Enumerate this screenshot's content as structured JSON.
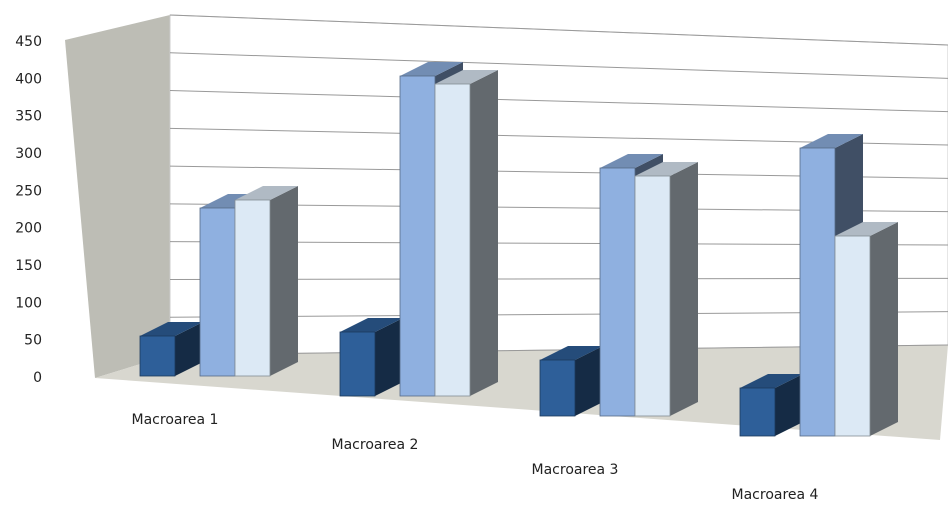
{
  "chart_data": {
    "type": "bar3d",
    "categories": [
      "Macroarea 1",
      "Macroarea 2",
      "Macroarea 3",
      "Macroarea 4"
    ],
    "series": [
      {
        "color": "#2e5f99",
        "values": [
          50,
          80,
          70,
          60
        ]
      },
      {
        "color": "#8fb0e0",
        "values": [
          210,
          400,
          310,
          360
        ]
      },
      {
        "color": "#dce9f5",
        "values": [
          220,
          390,
          300,
          250
        ]
      }
    ],
    "ylim": [
      0,
      450
    ],
    "yticks": [
      0,
      50,
      100,
      150,
      200,
      250,
      300,
      350,
      400,
      450
    ],
    "grid": true
  }
}
